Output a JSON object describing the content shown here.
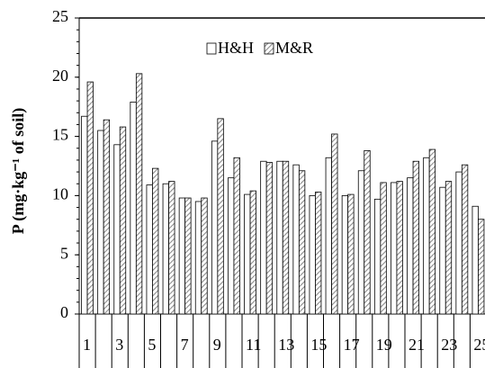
{
  "chart_data": {
    "type": "bar",
    "ylabel": "P (mg·kg⁻¹ of soil)",
    "categories": [
      "1",
      null,
      "3",
      null,
      "5",
      null,
      "7",
      null,
      "9",
      null,
      "11",
      null,
      "13",
      null,
      "15",
      null,
      "17",
      null,
      "19",
      null,
      "21",
      null,
      "23",
      null,
      "25"
    ],
    "series": [
      {
        "name": "H&H",
        "color": "#ffffff",
        "pattern": "solid",
        "values": [
          16.7,
          15.5,
          14.3,
          17.9,
          10.9,
          11.0,
          9.8,
          9.5,
          14.6,
          11.5,
          10.1,
          12.9,
          12.9,
          12.6,
          10.0,
          13.2,
          10.0,
          12.1,
          9.7,
          11.1,
          11.5,
          13.2,
          10.7,
          12.0,
          9.1
        ]
      },
      {
        "name": "M&R",
        "color": "#8c8c8c",
        "pattern": "hatch",
        "values": [
          19.6,
          16.4,
          15.8,
          20.3,
          12.3,
          11.2,
          9.8,
          9.8,
          16.5,
          13.2,
          10.4,
          12.8,
          12.9,
          12.1,
          10.3,
          15.2,
          10.1,
          13.8,
          11.1,
          11.2,
          12.9,
          13.9,
          11.2,
          12.6,
          8.0
        ]
      }
    ],
    "ylim": [
      0,
      25
    ],
    "yticks": [
      0,
      5,
      10,
      15,
      20,
      25
    ],
    "grid": false,
    "legend": "top"
  }
}
